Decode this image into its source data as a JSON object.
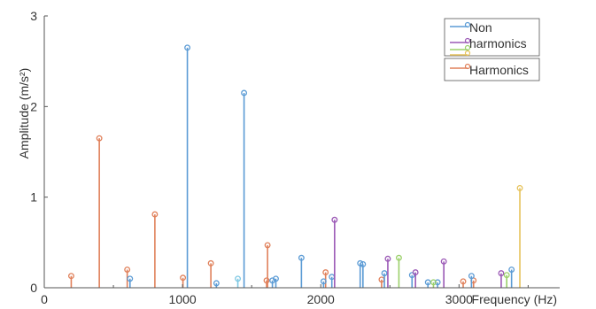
{
  "chart_data": {
    "type": "stem",
    "xlabel": "Frequency (Hz)",
    "ylabel": "Amplitude (m/s²)",
    "xlim": [
      0,
      3600
    ],
    "ylim": [
      0,
      3
    ],
    "x_ticks": [
      0,
      1000,
      2000,
      3000
    ],
    "x_tick_labels": [
      "0",
      "1000",
      "2000",
      "3000"
    ],
    "y_ticks": [
      0,
      1,
      2,
      3
    ],
    "y_tick_labels": [
      "0",
      "1",
      "2",
      "3"
    ],
    "grid": false,
    "legend_position": "top-right",
    "legend_entries": [
      {
        "label": "Non",
        "color": "#5b9bd5"
      },
      {
        "label": "harmonics",
        "color": "#9b59b6"
      },
      {
        "label": "",
        "color": "#e6c25a"
      },
      {
        "label": "",
        "color": "#9bd06a"
      },
      {
        "label": "Harmonics",
        "color": "#e0805a"
      }
    ],
    "series": [
      {
        "color": "#e0805a",
        "points": [
          [
            195,
            0.13
          ],
          [
            398,
            1.65
          ],
          [
            600,
            0.2
          ],
          [
            800,
            0.81
          ],
          [
            1003,
            0.11
          ],
          [
            1205,
            0.27
          ],
          [
            1608,
            0.08
          ],
          [
            1615,
            0.47
          ],
          [
            2035,
            0.17
          ],
          [
            2440,
            0.09
          ],
          [
            3030,
            0.07
          ],
          [
            3105,
            0.08
          ]
        ]
      },
      {
        "color": "#5b9bd5",
        "points": [
          [
            620,
            0.1
          ],
          [
            1035,
            2.65
          ],
          [
            1245,
            0.05
          ],
          [
            1445,
            2.15
          ],
          [
            1650,
            0.08
          ],
          [
            1675,
            0.1
          ],
          [
            1860,
            0.33
          ],
          [
            2020,
            0.07
          ],
          [
            2080,
            0.12
          ],
          [
            2285,
            0.27
          ],
          [
            2305,
            0.26
          ],
          [
            2460,
            0.16
          ],
          [
            2660,
            0.14
          ],
          [
            2775,
            0.06
          ],
          [
            2845,
            0.06
          ],
          [
            3090,
            0.13
          ],
          [
            3380,
            0.2
          ]
        ]
      },
      {
        "color": "#9b59b6",
        "points": [
          [
            2100,
            0.75
          ],
          [
            2485,
            0.32
          ],
          [
            2685,
            0.17
          ],
          [
            2890,
            0.29
          ],
          [
            3305,
            0.16
          ]
        ]
      },
      {
        "color": "#9bd06a",
        "points": [
          [
            2565,
            0.33
          ],
          [
            2815,
            0.06
          ],
          [
            3345,
            0.14
          ]
        ]
      },
      {
        "color": "#e6c25a",
        "points": [
          [
            3440,
            1.1
          ]
        ]
      },
      {
        "color": "#7ec8e3",
        "points": [
          [
            1400,
            0.1
          ]
        ]
      }
    ]
  }
}
